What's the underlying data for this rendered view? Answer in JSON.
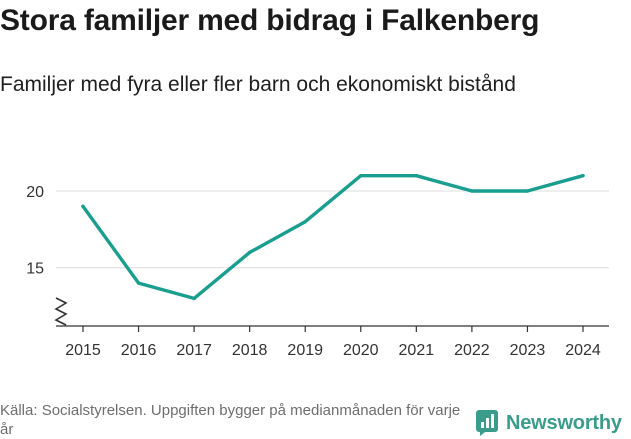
{
  "title": "Stora familjer med bidrag i Falkenberg",
  "subtitle": "Familjer med fyra eller fler barn och ekonomiskt bistånd",
  "source": "Källa: Socialstyrelsen. Uppgiften bygger på medianmånaden för varje år",
  "brand": "Newsworthy",
  "colors": {
    "line": "#1a9e8f",
    "brand": "#3a9c8a",
    "grid": "#dcdcdc"
  },
  "chart_data": {
    "type": "line",
    "x": [
      2015,
      2016,
      2017,
      2018,
      2019,
      2020,
      2021,
      2022,
      2023,
      2024
    ],
    "values": [
      19,
      14,
      13,
      16,
      18,
      21,
      21,
      20,
      20,
      21
    ],
    "x_tick_labels": [
      "2015",
      "2016",
      "2017",
      "2018",
      "2019",
      "2020",
      "2021",
      "2022",
      "2023",
      "2024"
    ],
    "y_ticks": [
      15,
      20
    ],
    "y_tick_labels": [
      "15",
      "20"
    ],
    "ylim": [
      11.2,
      23.0
    ],
    "axis_break": true,
    "grid": "horizontal"
  }
}
